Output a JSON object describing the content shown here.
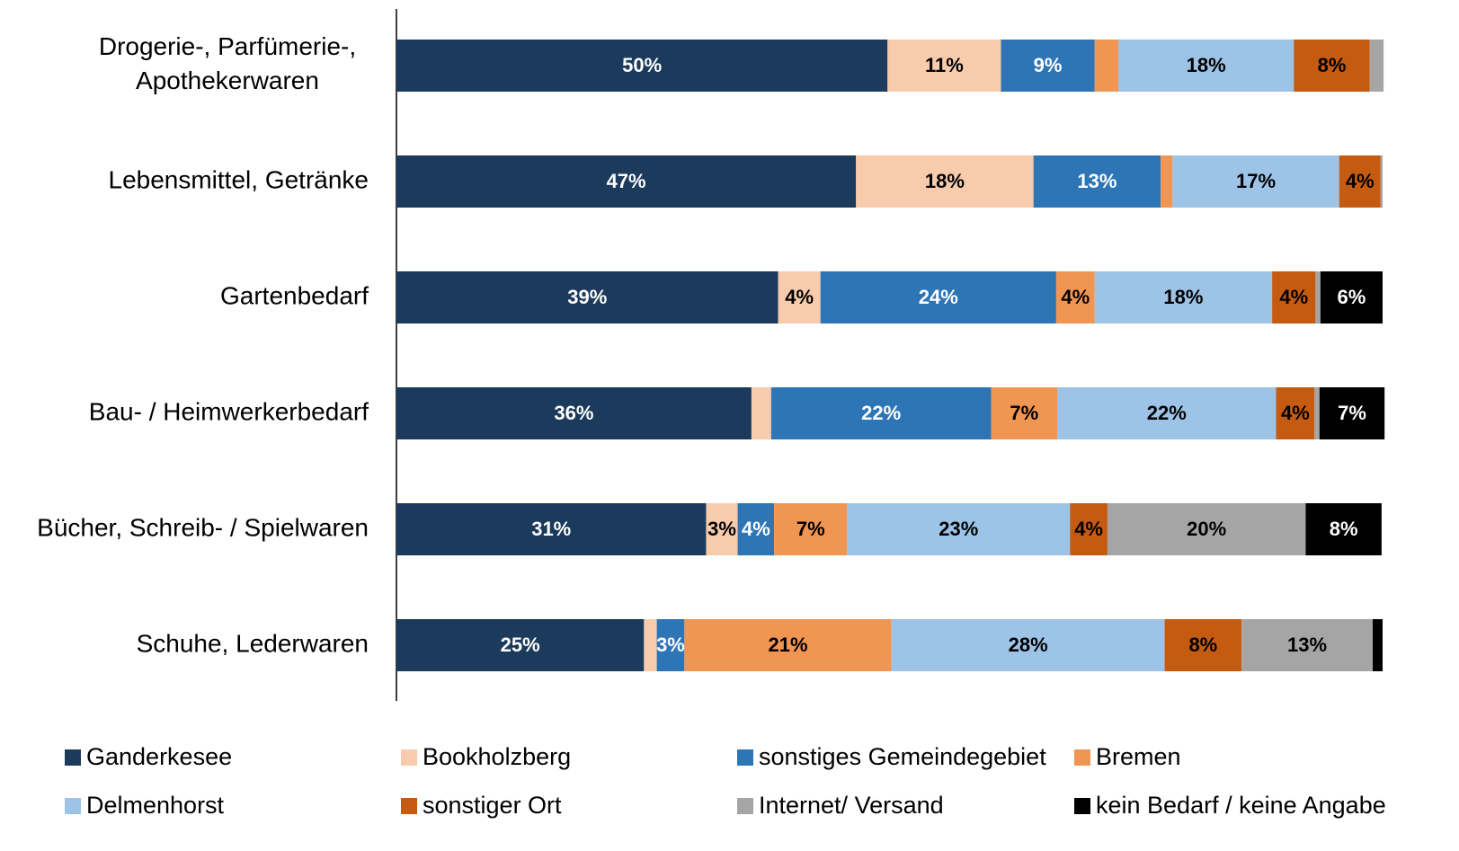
{
  "chart_data": {
    "type": "stacked_bar_horizontal",
    "categories": [
      "Drogerie-, Parfümerie-, Apothekerwaren",
      "Lebensmittel, Getränke",
      "Gartenbedarf",
      "Bau- / Heimwerkerbedarf",
      "Bücher, Schreib- / Spielwaren",
      "Schuhe, Lederwaren"
    ],
    "xlim": [
      0,
      100
    ],
    "series": [
      {
        "name": "Ganderkesee",
        "color": "#1b3a5c",
        "label_color": "#ffffff",
        "values": [
          49.8,
          46.6,
          38.7,
          36.0,
          31.4,
          25.1
        ],
        "value_labels": [
          "50%",
          "47%",
          "39%",
          "36%",
          "31%",
          "25%"
        ]
      },
      {
        "name": "Bookholzberg",
        "color": "#f8cbad",
        "label_color": "#000000",
        "values": [
          11.5,
          18.0,
          4.3,
          2.0,
          3.2,
          1.3
        ],
        "value_labels": [
          "11%",
          "18%",
          "4%",
          null,
          "3%",
          null
        ]
      },
      {
        "name": "sonstiges Gemeindegebiet",
        "color": "#2e75b6",
        "label_color": "#ffffff",
        "values": [
          9.5,
          12.9,
          23.9,
          22.3,
          3.7,
          2.8
        ],
        "value_labels": [
          "9%",
          "13%",
          "24%",
          "22%",
          "4%",
          "3%"
        ]
      },
      {
        "name": "Bremen",
        "color": "#f19553",
        "label_color": "#000000",
        "values": [
          2.4,
          1.2,
          3.9,
          6.7,
          7.4,
          21.0
        ],
        "value_labels": [
          null,
          null,
          "4%",
          "7%",
          "7%",
          "21%"
        ]
      },
      {
        "name": "Delmenhorst",
        "color": "#9dc3e6",
        "label_color": "#000000",
        "values": [
          17.8,
          16.9,
          18.0,
          22.2,
          22.6,
          27.7
        ],
        "value_labels": [
          "18%",
          "17%",
          "18%",
          "22%",
          "23%",
          "28%"
        ]
      },
      {
        "name": "sonstiger Ort",
        "color": "#c55a11",
        "label_color": "#000000",
        "values": [
          7.7,
          4.2,
          4.4,
          3.9,
          3.8,
          7.8
        ],
        "value_labels": [
          "8%",
          "4%",
          "4%",
          "4%",
          "4%",
          "8%"
        ]
      },
      {
        "name": "Internet/ Versand",
        "color": "#a5a5a5",
        "label_color": "#000000",
        "values": [
          1.4,
          0.2,
          0.5,
          0.5,
          20.1,
          13.3
        ],
        "value_labels": [
          null,
          null,
          null,
          null,
          "20%",
          "13%"
        ]
      },
      {
        "name": "kein Bedarf / keine Angabe",
        "color": "#000000",
        "label_color": "#ffffff",
        "values": [
          0,
          0,
          6.3,
          6.6,
          7.7,
          1.0
        ],
        "value_labels": [
          null,
          null,
          "6%",
          "7%",
          "8%",
          null
        ]
      }
    ]
  }
}
